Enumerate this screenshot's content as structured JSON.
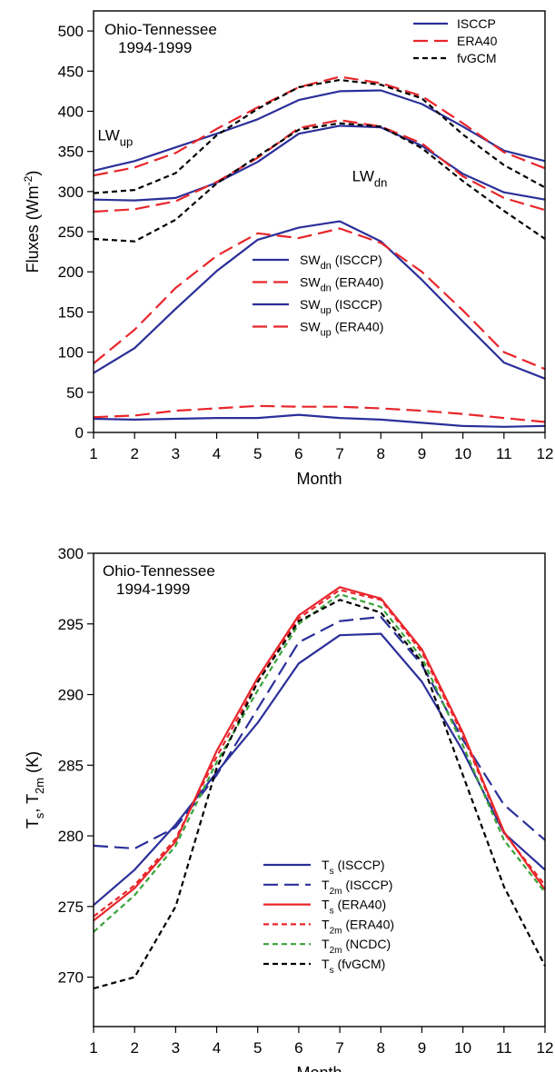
{
  "colors": {
    "isccp": "#2b2f99",
    "era40": "#e8262b",
    "ncdc": "#3aa33a",
    "fvgcm": "#000000"
  },
  "chart_data": [
    {
      "type": "line",
      "region_line1": "Ohio-Tennessee",
      "region_line2": "1994-1999",
      "xlabel": "Month",
      "ylabel": {
        "main": "Fluxes (Wm",
        "sup": "-2",
        "close": ")"
      },
      "x": [
        1,
        2,
        3,
        4,
        5,
        6,
        7,
        8,
        9,
        10,
        11,
        12
      ],
      "xlim": [
        1,
        12
      ],
      "ylim": [
        0,
        525
      ],
      "yticks": [
        0,
        50,
        100,
        150,
        200,
        250,
        300,
        350,
        400,
        450,
        500
      ],
      "annotations": [
        {
          "main": "LW",
          "sub": "up",
          "x": 1.1,
          "y": 364
        },
        {
          "main": "LW",
          "sub": "dn",
          "x": 7.3,
          "y": 313
        }
      ],
      "legends": [
        {
          "position": "top-right",
          "entries": [
            {
              "main": "ISCCP",
              "sub": "",
              "tail": "",
              "color_key": "isccp",
              "dash": "solid"
            },
            {
              "main": "ERA40",
              "sub": "",
              "tail": "",
              "color_key": "era40",
              "dash": "long"
            },
            {
              "main": "fvGCM",
              "sub": "",
              "tail": "",
              "color_key": "fvgcm",
              "dash": "short"
            }
          ]
        },
        {
          "position": "center",
          "entries": [
            {
              "main": "SW",
              "sub": "dn",
              "tail": " (ISCCP)",
              "color_key": "isccp",
              "dash": "solid"
            },
            {
              "main": "SW",
              "sub": "dn",
              "tail": " (ERA40)",
              "color_key": "era40",
              "dash": "long"
            },
            {
              "main": "SW",
              "sub": "up",
              "tail": " (ISCCP)",
              "color_key": "isccp",
              "dash": "solid"
            },
            {
              "main": "SW",
              "sub": "up",
              "tail": " (ERA40)",
              "color_key": "era40",
              "dash": "long"
            }
          ]
        }
      ],
      "series": [
        {
          "id": "lwup-isccp",
          "color_key": "isccp",
          "dash": "solid",
          "values": [
            326,
            338,
            355,
            372,
            390,
            414,
            425,
            426,
            409,
            381,
            351,
            338
          ]
        },
        {
          "id": "lwup-era40",
          "color_key": "era40",
          "dash": "long",
          "values": [
            320,
            330,
            348,
            378,
            405,
            430,
            443,
            435,
            419,
            385,
            349,
            329
          ]
        },
        {
          "id": "lwup-fvgcm",
          "color_key": "fvgcm",
          "dash": "short",
          "values": [
            298,
            302,
            323,
            370,
            403,
            430,
            439,
            433,
            416,
            371,
            333,
            305
          ]
        },
        {
          "id": "lwdn-isccp",
          "color_key": "isccp",
          "dash": "solid",
          "values": [
            290,
            289,
            292,
            311,
            337,
            372,
            382,
            380,
            357,
            322,
            299,
            290
          ]
        },
        {
          "id": "lwdn-era40",
          "color_key": "era40",
          "dash": "long",
          "values": [
            275,
            278,
            288,
            312,
            342,
            379,
            389,
            381,
            360,
            319,
            292,
            277
          ]
        },
        {
          "id": "lwdn-fvgcm",
          "color_key": "fvgcm",
          "dash": "short",
          "values": [
            241,
            238,
            265,
            310,
            344,
            377,
            385,
            381,
            354,
            313,
            276,
            241
          ]
        },
        {
          "id": "swdn-isccp",
          "color_key": "isccp",
          "dash": "solid",
          "values": [
            74,
            105,
            154,
            201,
            240,
            255,
            263,
            238,
            190,
            138,
            87,
            67
          ]
        },
        {
          "id": "swdn-era40",
          "color_key": "era40",
          "dash": "long",
          "values": [
            86,
            128,
            180,
            220,
            248,
            242,
            254,
            236,
            200,
            152,
            100,
            79
          ]
        },
        {
          "id": "swup-isccp",
          "color_key": "isccp",
          "dash": "solid",
          "values": [
            17,
            16,
            17,
            18,
            18,
            22,
            18,
            16,
            12,
            8,
            7,
            8
          ]
        },
        {
          "id": "swup-era40",
          "color_key": "era40",
          "dash": "long",
          "values": [
            19,
            21,
            27,
            30,
            33,
            32,
            32,
            30,
            27,
            23,
            18,
            13
          ]
        }
      ]
    },
    {
      "type": "line",
      "region_line1": "Ohio-Tennessee",
      "region_line2": "1994-1999",
      "xlabel": "Month",
      "ylabel": {
        "main": "T",
        "sub1": "s",
        "mid": ", T",
        "sub2": "2m",
        "tail": " (K)"
      },
      "x": [
        1,
        2,
        3,
        4,
        5,
        6,
        7,
        8,
        9,
        10,
        11,
        12
      ],
      "xlim": [
        1,
        12
      ],
      "ylim": [
        266.5,
        300
      ],
      "yticks": [
        270,
        275,
        280,
        285,
        290,
        295,
        300
      ],
      "annotations": [],
      "legends": [
        {
          "position": "bottom-center",
          "entries": [
            {
              "main": "T",
              "sub": "s",
              "tail": " (ISCCP)",
              "color_key": "isccp",
              "dash": "solid"
            },
            {
              "main": "T",
              "sub": "2m",
              "tail": " (ISCCP)",
              "color_key": "isccp",
              "dash": "long"
            },
            {
              "main": "T",
              "sub": "s",
              "tail": " (ERA40)",
              "color_key": "era40",
              "dash": "solid"
            },
            {
              "main": "T",
              "sub": "2m",
              "tail": " (ERA40)",
              "color_key": "era40",
              "dash": "short"
            },
            {
              "main": "T",
              "sub": "2m",
              "tail": " (NCDC)",
              "color_key": "ncdc",
              "dash": "short"
            },
            {
              "main": "T",
              "sub": "s",
              "tail": " (fvGCM)",
              "color_key": "fvgcm",
              "dash": "short"
            }
          ]
        }
      ],
      "series": [
        {
          "id": "ts-isccp",
          "color_key": "isccp",
          "dash": "solid",
          "values": [
            275.1,
            277.6,
            280.8,
            284.5,
            288.0,
            292.2,
            294.2,
            294.3,
            290.9,
            286.0,
            280.2,
            277.6
          ]
        },
        {
          "id": "t2m-isccp",
          "color_key": "isccp",
          "dash": "long",
          "values": [
            279.3,
            279.1,
            280.6,
            284.3,
            289.0,
            293.7,
            295.2,
            295.5,
            292.1,
            286.8,
            282.2,
            279.7
          ]
        },
        {
          "id": "ts-era40",
          "color_key": "era40",
          "dash": "solid",
          "values": [
            274.0,
            276.3,
            279.6,
            286.0,
            291.2,
            295.6,
            297.6,
            296.8,
            293.2,
            287.3,
            280.3,
            276.2
          ]
        },
        {
          "id": "t2m-era40",
          "color_key": "era40",
          "dash": "short",
          "values": [
            274.3,
            276.5,
            279.8,
            285.6,
            290.9,
            295.4,
            297.4,
            296.7,
            293.0,
            287.1,
            280.2,
            276.5
          ]
        },
        {
          "id": "t2m-ncdc",
          "color_key": "ncdc",
          "dash": "short",
          "values": [
            273.2,
            275.8,
            279.3,
            285.2,
            290.3,
            295.0,
            297.1,
            296.2,
            292.6,
            286.4,
            279.7,
            276.0
          ]
        },
        {
          "id": "ts-fvgcm",
          "color_key": "fvgcm",
          "dash": "short",
          "values": [
            269.2,
            270.0,
            275.0,
            284.8,
            290.9,
            295.2,
            296.7,
            295.8,
            292.3,
            284.3,
            276.4,
            270.8
          ]
        }
      ]
    }
  ]
}
